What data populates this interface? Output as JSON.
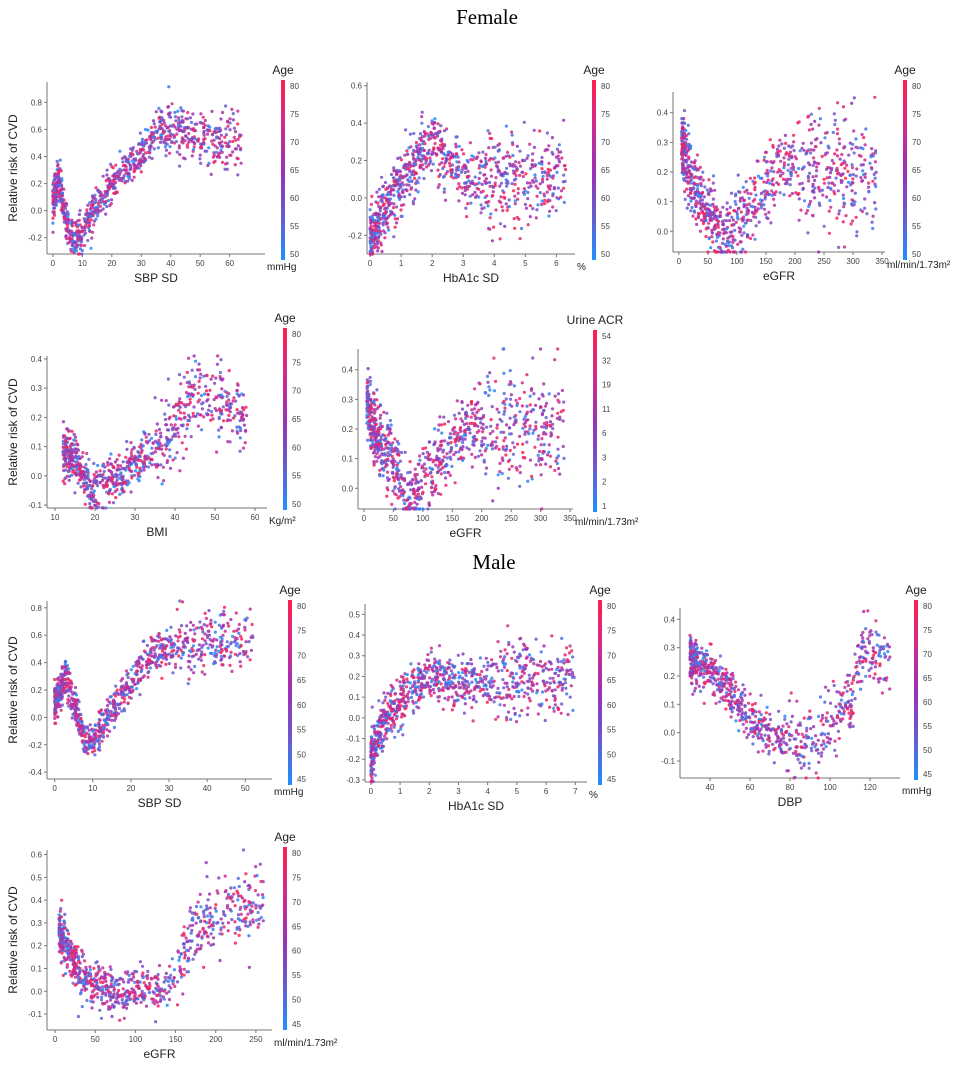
{
  "sections": [
    {
      "title": "Female"
    },
    {
      "title": "Male"
    }
  ],
  "colors": {
    "colormap": [
      "#1e90ff",
      "#6a5acd",
      "#9b30b5",
      "#d02c8e",
      "#ff1f4b"
    ],
    "axis": "#777777"
  },
  "chart_data": [
    {
      "type": "scatter",
      "section": "Female",
      "xlabel": "SBP SD",
      "unit": "mmHg",
      "ylabel": "Relative risk of CVD",
      "xticks": [
        0,
        10,
        20,
        30,
        40,
        50,
        60
      ],
      "yticks": [
        -0.2,
        0.0,
        0.2,
        0.4,
        0.6,
        0.8
      ],
      "xlim": [
        -2,
        72
      ],
      "ylim": [
        -0.32,
        0.95
      ],
      "colorbar": {
        "title": "Age",
        "ticks": [
          "80",
          "75",
          "70",
          "65",
          "60",
          "55",
          "50"
        ]
      },
      "curve": [
        [
          0,
          0.05
        ],
        [
          2,
          0.25
        ],
        [
          4,
          -0.05
        ],
        [
          7,
          -0.22
        ],
        [
          10,
          -0.15
        ],
        [
          15,
          0.05
        ],
        [
          20,
          0.22
        ],
        [
          25,
          0.3
        ],
        [
          30,
          0.42
        ],
        [
          35,
          0.58
        ],
        [
          40,
          0.6
        ],
        [
          50,
          0.55
        ],
        [
          62,
          0.5
        ]
      ],
      "xmax": 64,
      "spread": 0.07,
      "n": 900
    },
    {
      "type": "scatter",
      "section": "Female",
      "xlabel": "HbA1c SD",
      "unit": "%",
      "ylabel": "",
      "xticks": [
        0,
        1,
        2,
        3,
        4,
        5,
        6
      ],
      "yticks": [
        -0.2,
        0.0,
        0.2,
        0.4,
        0.6
      ],
      "xlim": [
        -0.1,
        6.6
      ],
      "ylim": [
        -0.3,
        0.62
      ],
      "colorbar": {
        "title": "Age",
        "ticks": [
          "80",
          "75",
          "70",
          "65",
          "60",
          "55",
          "50"
        ]
      },
      "curve": [
        [
          0,
          -0.22
        ],
        [
          0.3,
          -0.1
        ],
        [
          0.8,
          0.05
        ],
        [
          1.5,
          0.2
        ],
        [
          2.0,
          0.3
        ],
        [
          2.4,
          0.22
        ],
        [
          3.0,
          0.12
        ],
        [
          4.0,
          0.1
        ],
        [
          5.5,
          0.1
        ],
        [
          6.3,
          0.12
        ]
      ],
      "xmax": 6.3,
      "spread": 0.08,
      "n": 900
    },
    {
      "type": "scatter",
      "section": "Female",
      "xlabel": "eGFR",
      "unit": "ml/min/1.73m²",
      "ylabel": "",
      "xticks": [
        0,
        50,
        100,
        150,
        200,
        250,
        300,
        350
      ],
      "yticks": [
        0.0,
        0.1,
        0.2,
        0.3,
        0.4
      ],
      "xlim": [
        -10,
        355
      ],
      "ylim": [
        -0.07,
        0.47
      ],
      "colorbar": {
        "title": "Age",
        "ticks": [
          "80",
          "75",
          "70",
          "65",
          "60",
          "55",
          "50"
        ]
      },
      "curve": [
        [
          5,
          0.3
        ],
        [
          20,
          0.18
        ],
        [
          40,
          0.1
        ],
        [
          60,
          0.05
        ],
        [
          75,
          -0.03
        ],
        [
          90,
          0.0
        ],
        [
          110,
          0.05
        ],
        [
          140,
          0.12
        ],
        [
          170,
          0.2
        ],
        [
          220,
          0.22
        ],
        [
          340,
          0.2
        ]
      ],
      "xmax": 340,
      "spread": 0.06,
      "n": 900
    },
    {
      "type": "scatter",
      "section": "Female",
      "xlabel": "BMI",
      "unit": "Kg/m²",
      "ylabel": "Relative risk of CVD",
      "xticks": [
        10,
        20,
        30,
        40,
        50,
        60
      ],
      "yticks": [
        -0.1,
        0.0,
        0.1,
        0.2,
        0.3,
        0.4
      ],
      "xlim": [
        8,
        63
      ],
      "ylim": [
        -0.11,
        0.41
      ],
      "colorbar": {
        "title": "Age",
        "ticks": [
          "80",
          "75",
          "70",
          "65",
          "60",
          "55",
          "50"
        ]
      },
      "curve": [
        [
          12,
          0.08
        ],
        [
          16,
          0.05
        ],
        [
          19,
          -0.05
        ],
        [
          22,
          -0.03
        ],
        [
          26,
          0.0
        ],
        [
          30,
          0.05
        ],
        [
          35,
          0.1
        ],
        [
          40,
          0.17
        ],
        [
          44,
          0.28
        ],
        [
          50,
          0.25
        ],
        [
          58,
          0.2
        ]
      ],
      "xmax": 58,
      "spread": 0.04,
      "n": 800
    },
    {
      "type": "scatter",
      "section": "Female",
      "xlabel": "eGFR",
      "unit": "ml/min/1.73m²",
      "ylabel": "",
      "xticks": [
        0,
        50,
        100,
        150,
        200,
        250,
        300,
        350
      ],
      "yticks": [
        0.0,
        0.1,
        0.2,
        0.3,
        0.4
      ],
      "xlim": [
        -10,
        355
      ],
      "ylim": [
        -0.07,
        0.47
      ],
      "colorbar": {
        "title": "Urine ACR",
        "ticks": [
          "54",
          "32",
          "19",
          "11",
          "6",
          "3",
          "2",
          "1"
        ]
      },
      "curve": [
        [
          5,
          0.3
        ],
        [
          20,
          0.18
        ],
        [
          40,
          0.12
        ],
        [
          60,
          0.05
        ],
        [
          75,
          -0.03
        ],
        [
          90,
          0.0
        ],
        [
          110,
          0.05
        ],
        [
          140,
          0.12
        ],
        [
          170,
          0.2
        ],
        [
          220,
          0.22
        ],
        [
          340,
          0.2
        ]
      ],
      "xmax": 340,
      "spread": 0.06,
      "n": 900
    },
    {
      "type": "scatter",
      "section": "Male",
      "xlabel": "SBP SD",
      "unit": "mmHg",
      "ylabel": "Relative risk of CVD",
      "xticks": [
        0,
        10,
        20,
        30,
        40,
        50
      ],
      "yticks": [
        -0.4,
        -0.2,
        0.0,
        0.2,
        0.4,
        0.6,
        0.8
      ],
      "xlim": [
        -2,
        57
      ],
      "ylim": [
        -0.45,
        0.85
      ],
      "colorbar": {
        "title": "Age",
        "ticks": [
          "80",
          "75",
          "70",
          "65",
          "60",
          "55",
          "50",
          "45"
        ]
      },
      "curve": [
        [
          0,
          0.1
        ],
        [
          3,
          0.3
        ],
        [
          5,
          0.1
        ],
        [
          8,
          -0.2
        ],
        [
          10,
          -0.18
        ],
        [
          15,
          0.05
        ],
        [
          20,
          0.25
        ],
        [
          25,
          0.45
        ],
        [
          30,
          0.5
        ],
        [
          40,
          0.55
        ],
        [
          52,
          0.55
        ]
      ],
      "xmax": 52,
      "spread": 0.07,
      "n": 900
    },
    {
      "type": "scatter",
      "section": "Male",
      "xlabel": "HbA1c SD",
      "unit": "%",
      "ylabel": "",
      "xticks": [
        0,
        1,
        2,
        3,
        4,
        5,
        6,
        7
      ],
      "yticks": [
        -0.3,
        -0.2,
        -0.1,
        0.0,
        0.1,
        0.2,
        0.3,
        0.4,
        0.5
      ],
      "xlim": [
        -0.2,
        7.4
      ],
      "ylim": [
        -0.31,
        0.55
      ],
      "colorbar": {
        "title": "Age",
        "ticks": [
          "80",
          "75",
          "70",
          "65",
          "60",
          "55",
          "50",
          "45"
        ]
      },
      "curve": [
        [
          0,
          -0.2
        ],
        [
          0.3,
          -0.05
        ],
        [
          0.8,
          0.05
        ],
        [
          1.5,
          0.15
        ],
        [
          2.0,
          0.2
        ],
        [
          3.0,
          0.18
        ],
        [
          4.0,
          0.17
        ],
        [
          5.5,
          0.18
        ],
        [
          7.0,
          0.2
        ]
      ],
      "xmax": 7,
      "spread": 0.06,
      "n": 900
    },
    {
      "type": "scatter",
      "section": "Male",
      "xlabel": "DBP",
      "unit": "mmHg",
      "ylabel": "",
      "xticks": [
        40,
        60,
        80,
        100,
        120
      ],
      "yticks": [
        -0.1,
        0.0,
        0.1,
        0.2,
        0.3,
        0.4
      ],
      "xlim": [
        25,
        135
      ],
      "ylim": [
        -0.16,
        0.44
      ],
      "colorbar": {
        "title": "Age",
        "ticks": [
          "80",
          "75",
          "70",
          "65",
          "60",
          "55",
          "50",
          "45"
        ]
      },
      "curve": [
        [
          30,
          0.25
        ],
        [
          40,
          0.22
        ],
        [
          50,
          0.15
        ],
        [
          60,
          0.05
        ],
        [
          70,
          0.0
        ],
        [
          80,
          -0.03
        ],
        [
          90,
          -0.04
        ],
        [
          100,
          0.02
        ],
        [
          110,
          0.12
        ],
        [
          118,
          0.3
        ],
        [
          130,
          0.25
        ]
      ],
      "xmax": 130,
      "spread": 0.04,
      "n": 800
    },
    {
      "type": "scatter",
      "section": "Male",
      "xlabel": "eGFR",
      "unit": "ml/min/1.73m²",
      "ylabel": "Relative risk of CVD",
      "xticks": [
        0,
        50,
        100,
        150,
        200,
        250
      ],
      "yticks": [
        -0.1,
        0.0,
        0.1,
        0.2,
        0.3,
        0.4,
        0.5,
        0.6
      ],
      "xlim": [
        -10,
        270
      ],
      "ylim": [
        -0.17,
        0.62
      ],
      "colorbar": {
        "title": "Age",
        "ticks": [
          "80",
          "75",
          "70",
          "65",
          "60",
          "55",
          "50",
          "45"
        ]
      },
      "curve": [
        [
          5,
          0.25
        ],
        [
          15,
          0.2
        ],
        [
          25,
          0.1
        ],
        [
          40,
          0.05
        ],
        [
          60,
          0.02
        ],
        [
          80,
          0.0
        ],
        [
          100,
          0.02
        ],
        [
          130,
          0.0
        ],
        [
          150,
          0.05
        ],
        [
          170,
          0.25
        ],
        [
          200,
          0.35
        ],
        [
          260,
          0.4
        ]
      ],
      "xmax": 260,
      "spread": 0.05,
      "n": 800
    }
  ]
}
